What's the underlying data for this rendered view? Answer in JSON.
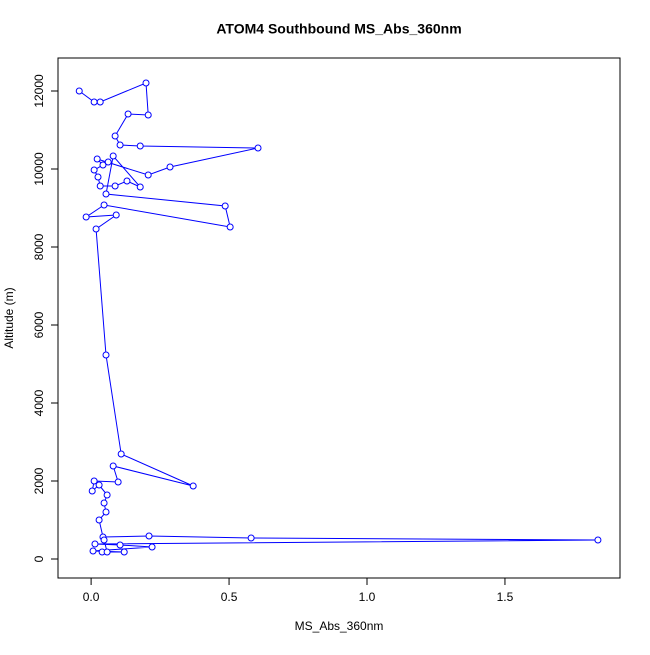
{
  "chart_data": {
    "type": "line",
    "title": "ATOM4 Southbound MS_Abs_360nm",
    "x_label": "MS_Abs_360nm",
    "y_label": "Altitude (m)",
    "color": "#0000ff",
    "markers": true,
    "x": [
      -0.043,
      0.011,
      0.033,
      0.199,
      0.207,
      0.134,
      0.087,
      0.105,
      0.178,
      0.605,
      0.286,
      0.207,
      0.022,
      0.043,
      0.062,
      0.011,
      0.025,
      0.033,
      0.087,
      0.13,
      0.178,
      0.08,
      0.054,
      0.486,
      0.504,
      0.047,
      -0.018,
      0.091,
      0.018,
      0.054,
      0.109,
      0.37,
      0.08,
      0.098,
      0.011,
      0.004,
      0.029,
      0.058,
      0.047,
      0.054,
      0.029,
      0.043,
      0.21,
      0.58,
      1.837,
      0.014,
      0.105,
      0.221,
      0.007,
      0.12,
      0.04,
      0.058,
      0.047
    ],
    "values": [
      12000,
      11718,
      11718,
      12205,
      11385,
      11410,
      10846,
      10615,
      10590,
      10538,
      10051,
      9846,
      10256,
      10103,
      10180,
      9974,
      9795,
      9564,
      9564,
      9692,
      9538,
      10333,
      9359,
      9051,
      8513,
      9077,
      8769,
      8821,
      8462,
      5231,
      2692,
      1872,
      2385,
      1974,
      2000,
      1744,
      1897,
      1641,
      1436,
      1205,
      1000,
      564,
      590,
      538,
      487,
      385,
      359,
      308,
      205,
      179,
      179,
      179,
      487
    ],
    "xlim": [
      -0.12,
      1.917
    ],
    "ylim": [
      -487,
      12846
    ],
    "xticks": [
      {
        "value": 0,
        "label": "0.0"
      },
      {
        "value": 0.5,
        "label": "0.5"
      },
      {
        "value": 1,
        "label": "1.0"
      },
      {
        "value": 1.5,
        "label": "1.5"
      }
    ],
    "yticks": [
      0,
      2000,
      4000,
      6000,
      8000,
      10000,
      12000
    ]
  }
}
